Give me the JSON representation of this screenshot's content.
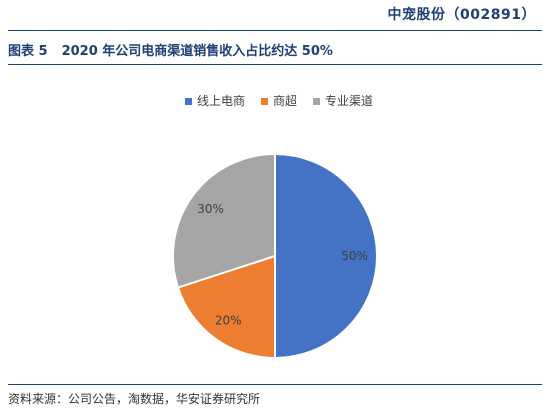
{
  "header": {
    "brand": "中宠股份（002891）"
  },
  "figure": {
    "number": "图表 5",
    "title": "2020 年公司电商渠道销售收入占比约达 50%"
  },
  "footer": {
    "source": "资料来源：公司公告，淘数据，华安证券研究所"
  },
  "chart_data": {
    "type": "pie",
    "title": "",
    "legend_position": "top",
    "categories": [
      "线上电商",
      "商超",
      "专业渠道"
    ],
    "values": [
      50,
      20,
      30
    ],
    "labels": [
      "50%",
      "20%",
      "30%"
    ],
    "colors": [
      "#4472c4",
      "#ed7d31",
      "#a5a5a5"
    ]
  }
}
